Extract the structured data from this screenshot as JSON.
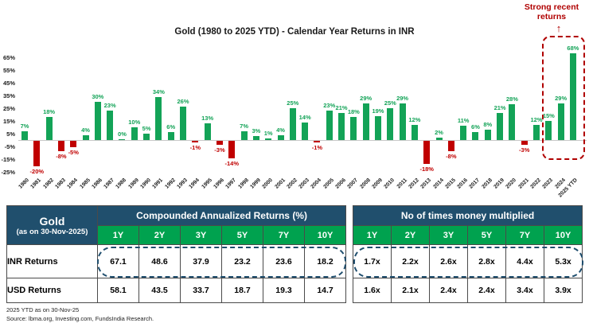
{
  "colors": {
    "navy": "#204f6d",
    "green_header": "#00a24f",
    "bar_green": "#13a357",
    "bar_red": "#c00000",
    "annotation_red": "#b00000",
    "dashed_navy": "#1f4e6e"
  },
  "chart_data": {
    "type": "bar",
    "title": "Gold (1980 to 2025 YTD) - Calendar Year Returns in INR",
    "unit": "%",
    "grid": false,
    "ylim": [
      -25,
      65
    ],
    "yticks": [
      "65%",
      "55%",
      "45%",
      "35%",
      "25%",
      "15%",
      "5%",
      "-5%",
      "-15%",
      "-25%"
    ],
    "categories": [
      "1980",
      "1981",
      "1982",
      "1983",
      "1984",
      "1985",
      "1986",
      "1987",
      "1988",
      "1989",
      "1990",
      "1991",
      "1992",
      "1993",
      "1994",
      "1995",
      "1996",
      "1997",
      "1998",
      "1999",
      "2000",
      "2001",
      "2002",
      "2003",
      "2004",
      "2005",
      "2006",
      "2007",
      "2008",
      "2009",
      "2010",
      "2011",
      "2012",
      "2013",
      "2014",
      "2015",
      "2016",
      "2017",
      "2018",
      "2019",
      "2020",
      "2021",
      "2022",
      "2023",
      "2024",
      "2025 YTD"
    ],
    "values": [
      7,
      -20,
      18,
      -8,
      -5,
      4,
      30,
      23,
      0,
      10,
      5,
      34,
      6,
      26,
      -1,
      13,
      -3,
      -14,
      7,
      3,
      1,
      4,
      25,
      14,
      -1,
      23,
      21,
      18,
      29,
      19,
      25,
      29,
      12,
      -18,
      2,
      -8,
      11,
      6,
      8,
      21,
      28,
      -3,
      12,
      15,
      29,
      68
    ],
    "annotation": {
      "line1": "Strong recent",
      "line2": "returns",
      "arrow_glyph": "↑",
      "highlighted_categories": [
        "2023",
        "2024",
        "2025 YTD"
      ]
    }
  },
  "table": {
    "corner": {
      "title": "Gold",
      "subtitle": "(as on 30-Nov-2025)"
    },
    "sections": [
      {
        "title": "Compounded Annualized Returns (%)",
        "columns": [
          "1Y",
          "2Y",
          "3Y",
          "5Y",
          "7Y",
          "10Y"
        ]
      },
      {
        "title": "No of times money multiplied",
        "columns": [
          "1Y",
          "2Y",
          "3Y",
          "5Y",
          "7Y",
          "10Y"
        ]
      }
    ],
    "rows": [
      {
        "label": "INR Returns",
        "car": [
          "67.1",
          "48.6",
          "37.9",
          "23.2",
          "23.6",
          "18.2"
        ],
        "mult": [
          "1.7x",
          "2.2x",
          "2.6x",
          "2.8x",
          "4.4x",
          "5.3x"
        ],
        "highlighted": true
      },
      {
        "label": "USD Returns",
        "car": [
          "58.1",
          "43.5",
          "33.7",
          "18.7",
          "19.3",
          "14.7"
        ],
        "mult": [
          "1.6x",
          "2.1x",
          "2.4x",
          "2.4x",
          "3.4x",
          "3.9x"
        ],
        "highlighted": false
      }
    ]
  },
  "footer": {
    "line1": "2025 YTD as on 30-Nov-25",
    "line2": "Source: lbma.org, Investing.com, FundsIndia Research."
  }
}
